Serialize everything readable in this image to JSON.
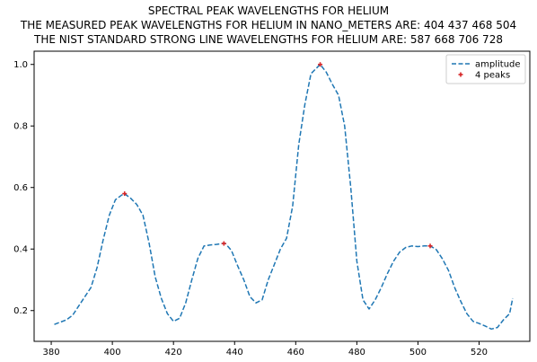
{
  "chart_data": {
    "type": "line",
    "title_lines": [
      "SPECTRAL PEAK WAVELENGTHS FOR HELIUM",
      "THE MEASURED PEAK WAVELENGTHS FOR HELIUM IN NANO_METERS ARE: 404 437 468 504",
      "THE NIST STANDARD STRONG LINE WAVELENGTHS FOR HELIUM ARE: 587 668 706 728"
    ],
    "xlim": [
      374.4,
      536.6
    ],
    "ylim": [
      0.1,
      1.043
    ],
    "xticks": [
      380,
      400,
      420,
      440,
      460,
      480,
      500,
      520
    ],
    "yticks": [
      0.2,
      0.4,
      0.6,
      0.8,
      1.0
    ],
    "ytick_labels": [
      "0.2",
      "0.4",
      "0.6",
      "0.8",
      "1.0"
    ],
    "grid": false,
    "legend_position": "top-right",
    "series": [
      {
        "name": "amplitude",
        "style": "dashed",
        "color": "#1f77b4",
        "x": [
          381,
          385,
          387,
          389,
          391,
          393,
          395,
          397,
          399,
          401,
          403,
          404,
          406,
          408,
          410,
          412,
          414,
          416,
          418,
          420,
          422,
          424,
          426,
          428,
          430,
          432,
          434,
          436,
          437,
          439,
          441,
          443,
          445,
          447,
          449,
          451,
          453,
          455,
          457,
          459,
          461,
          463,
          465,
          467,
          468,
          470,
          472,
          474,
          476,
          478,
          480,
          482,
          484,
          486,
          488,
          490,
          492,
          494,
          496,
          498,
          500,
          502,
          504,
          506,
          508,
          510,
          512,
          514,
          516,
          518,
          520,
          522,
          524,
          526,
          528,
          530,
          531
        ],
        "y": [
          0.155,
          0.17,
          0.185,
          0.215,
          0.245,
          0.275,
          0.34,
          0.43,
          0.51,
          0.56,
          0.575,
          0.58,
          0.565,
          0.545,
          0.51,
          0.42,
          0.31,
          0.24,
          0.19,
          0.165,
          0.175,
          0.225,
          0.3,
          0.37,
          0.41,
          0.413,
          0.415,
          0.418,
          0.418,
          0.395,
          0.345,
          0.3,
          0.245,
          0.225,
          0.235,
          0.3,
          0.35,
          0.4,
          0.435,
          0.54,
          0.74,
          0.87,
          0.97,
          0.99,
          1.0,
          0.975,
          0.935,
          0.9,
          0.8,
          0.6,
          0.36,
          0.235,
          0.205,
          0.235,
          0.275,
          0.32,
          0.36,
          0.39,
          0.405,
          0.41,
          0.408,
          0.41,
          0.41,
          0.398,
          0.368,
          0.33,
          0.275,
          0.23,
          0.19,
          0.165,
          0.158,
          0.15,
          0.14,
          0.145,
          0.17,
          0.19,
          0.24
        ]
      },
      {
        "name": "4 peaks",
        "style": "markers",
        "color": "#d62728",
        "x": [
          404,
          436.5,
          468,
          504
        ],
        "y": [
          0.58,
          0.418,
          1.0,
          0.41
        ]
      }
    ]
  }
}
